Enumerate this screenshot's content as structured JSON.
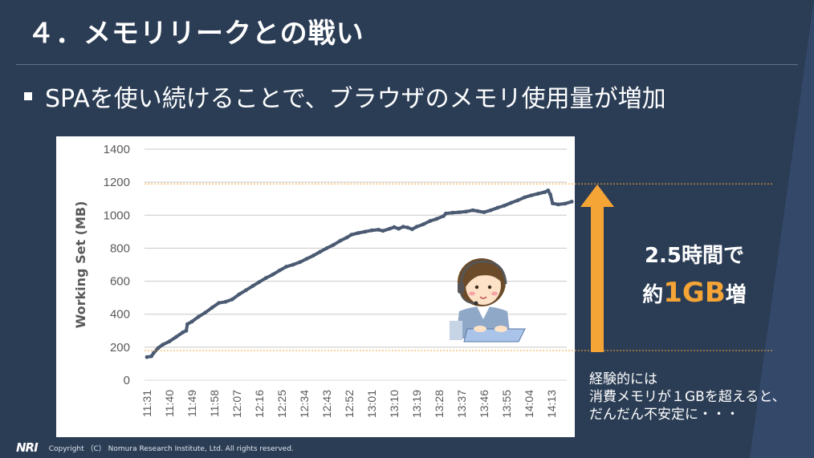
{
  "slide": {
    "title": "４．メモリリークとの戦い",
    "bullet": "SPAを使い続けることで、ブラウザのメモリ使用量が増加",
    "callout_line1": "2.5時間で",
    "callout_prefix": "約",
    "callout_value": "1GB",
    "callout_suffix": "増",
    "note_lines": [
      "経験的には",
      "消費メモリが１GBを超えると、",
      "だんだん不安定に・・・"
    ],
    "footer_logo": "NRI",
    "copyright": "Copyright （C） Nomura Research Institute, Ltd. All rights reserved."
  },
  "colors": {
    "background": "#2b3d55",
    "accent": "#f5a436",
    "series": "#4a5a72",
    "grid": "#d9d9d9"
  },
  "icons": {
    "illustration": "operator-with-headset-at-keyboard",
    "arrow": "up-arrow"
  },
  "chart_data": {
    "type": "line",
    "ylabel": "Working Set (MB)",
    "xlabel": "",
    "ylim": [
      0,
      1400
    ],
    "yticks": [
      0,
      200,
      400,
      600,
      800,
      1000,
      1200,
      1400
    ],
    "categories": [
      "11:31",
      "11:40",
      "11:49",
      "11:58",
      "12:07",
      "12:16",
      "12:25",
      "12:34",
      "12:43",
      "12:52",
      "13:01",
      "13:10",
      "13:19",
      "13:28",
      "13:37",
      "13:46",
      "13:55",
      "14:04",
      "14:13"
    ],
    "grid": true,
    "legend": "none",
    "reference_levels": [
      180,
      1190
    ],
    "series": [
      {
        "points": [
          [
            0,
            140
          ],
          [
            0.2,
            145
          ],
          [
            0.3,
            165
          ],
          [
            0.5,
            195
          ],
          [
            0.7,
            215
          ],
          [
            1,
            235
          ],
          [
            1.3,
            262
          ],
          [
            1.6,
            290
          ],
          [
            1.75,
            300
          ],
          [
            1.8,
            340
          ],
          [
            2,
            355
          ],
          [
            2.3,
            385
          ],
          [
            2.6,
            410
          ],
          [
            2.9,
            440
          ],
          [
            3.2,
            468
          ],
          [
            3.5,
            475
          ],
          [
            3.8,
            490
          ],
          [
            4.1,
            520
          ],
          [
            4.4,
            545
          ],
          [
            4.7,
            570
          ],
          [
            5,
            595
          ],
          [
            5.3,
            620
          ],
          [
            5.6,
            640
          ],
          [
            5.9,
            665
          ],
          [
            6.2,
            688
          ],
          [
            6.5,
            700
          ],
          [
            6.8,
            715
          ],
          [
            7.1,
            735
          ],
          [
            7.4,
            755
          ],
          [
            7.7,
            778
          ],
          [
            8,
            800
          ],
          [
            8.3,
            820
          ],
          [
            8.6,
            845
          ],
          [
            8.9,
            865
          ],
          [
            9.1,
            882
          ],
          [
            9.4,
            892
          ],
          [
            9.7,
            900
          ],
          [
            10,
            908
          ],
          [
            10.3,
            912
          ],
          [
            10.5,
            905
          ],
          [
            10.8,
            918
          ],
          [
            11,
            928
          ],
          [
            11.2,
            918
          ],
          [
            11.4,
            930
          ],
          [
            11.6,
            925
          ],
          [
            11.8,
            915
          ],
          [
            12,
            930
          ],
          [
            12.3,
            945
          ],
          [
            12.6,
            965
          ],
          [
            12.9,
            978
          ],
          [
            13.2,
            995
          ],
          [
            13.3,
            1010
          ],
          [
            13.6,
            1015
          ],
          [
            13.9,
            1018
          ],
          [
            14.2,
            1022
          ],
          [
            14.5,
            1030
          ],
          [
            14.7,
            1025
          ],
          [
            15,
            1018
          ],
          [
            15.3,
            1030
          ],
          [
            15.6,
            1045
          ],
          [
            15.9,
            1058
          ],
          [
            16.2,
            1075
          ],
          [
            16.5,
            1090
          ],
          [
            16.8,
            1108
          ],
          [
            17.1,
            1120
          ],
          [
            17.4,
            1130
          ],
          [
            17.7,
            1140
          ],
          [
            17.85,
            1150
          ],
          [
            17.95,
            1125
          ],
          [
            18.05,
            1072
          ],
          [
            18.3,
            1065
          ],
          [
            18.6,
            1070
          ],
          [
            18.9,
            1082
          ]
        ]
      }
    ]
  }
}
